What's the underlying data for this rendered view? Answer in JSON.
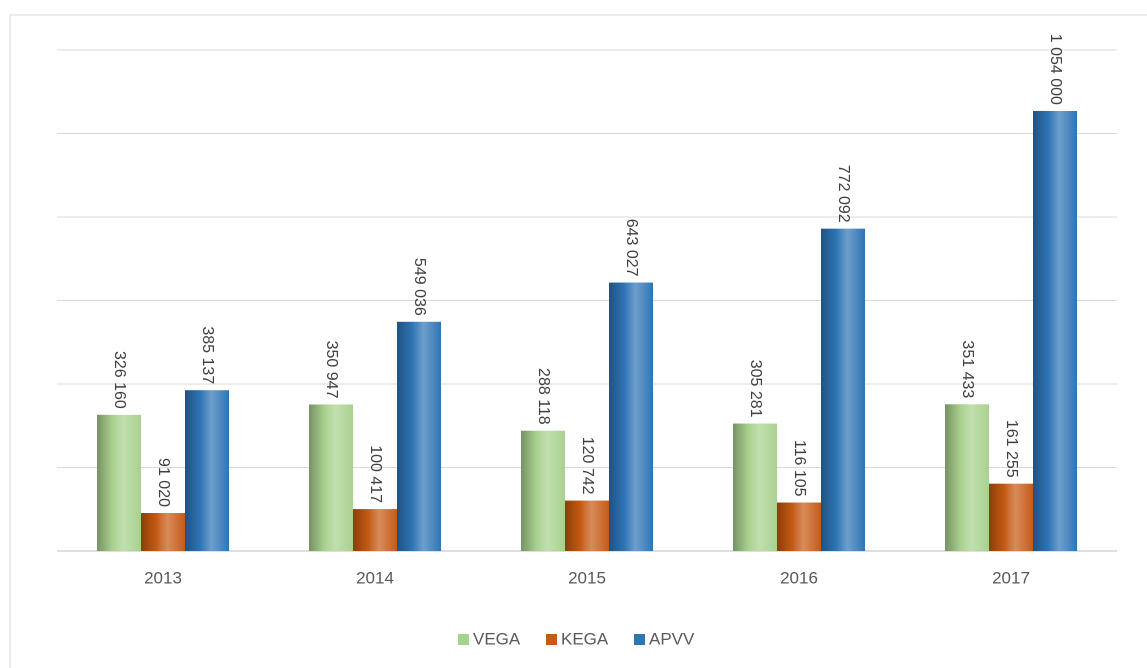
{
  "chart_data": {
    "type": "bar",
    "categories": [
      "2013",
      "2014",
      "2015",
      "2016",
      "2017"
    ],
    "series": [
      {
        "name": "VEGA",
        "color": "#a9d18e",
        "values": [
          326160,
          350947,
          288118,
          305281,
          351433
        ],
        "value_labels": [
          "326 160",
          "350 947",
          "288 118",
          "305 281",
          "351 433"
        ]
      },
      {
        "name": "KEGA",
        "color": "#c55a11",
        "values": [
          91020,
          100417,
          120742,
          116105,
          161255
        ],
        "value_labels": [
          "91 020",
          "100 417",
          "120 742",
          "116 105",
          "161 255"
        ]
      },
      {
        "name": "APVV",
        "color": "#2e75b6",
        "values": [
          385137,
          549036,
          643027,
          772092,
          1054000
        ],
        "value_labels": [
          "385 137",
          "549 036",
          "643 027",
          "772 092",
          "1 054 000"
        ]
      }
    ],
    "ylim": [
      0,
      1200000
    ],
    "yticks": [
      0,
      200000,
      400000,
      600000,
      800000,
      1000000,
      1200000
    ],
    "grid": true,
    "legend": "bottom"
  }
}
